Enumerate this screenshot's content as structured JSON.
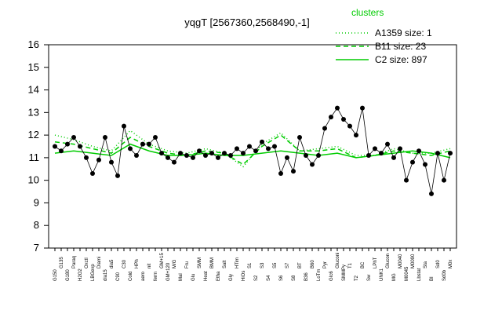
{
  "chart_data": {
    "type": "line",
    "title": "yqgT [2567360,2568490,-1]",
    "ylim": [
      7,
      16
    ],
    "yticks": [
      7,
      8,
      9,
      10,
      11,
      12,
      13,
      14,
      15,
      16
    ],
    "legend": {
      "title": "clusters",
      "placement": "top-right",
      "entries": [
        {
          "label": "A1359 size: 1",
          "style": "dotted"
        },
        {
          "label": "B11 size: 23",
          "style": "dashed"
        },
        {
          "label": "C2 size: 897",
          "style": "solid"
        }
      ]
    },
    "colors": {
      "series": "#00cc00",
      "points": "#000000"
    },
    "categories": [
      "G150",
      "G135",
      "G180",
      "Paraq",
      "H2O2",
      "Oxctl",
      "LBGexp",
      "Diami",
      "dia15",
      "dia5",
      "C90",
      "C30",
      "Cold",
      "HPh",
      "aero",
      "nit",
      "ferm",
      "GM+15",
      "GM+120",
      "M/G",
      "Mal",
      "Fru",
      "Glu",
      "SMM",
      "Heat",
      "BMM",
      "Etha",
      "Salt",
      "Gly",
      "HTim",
      "HiOs",
      "S1",
      "S2",
      "S3",
      "S4",
      "S5",
      "S6",
      "S7",
      "S8",
      "BT",
      "B36",
      "B60",
      "LoTm",
      "Pyr",
      "GIc6",
      "Gluconi",
      "SMMPy",
      "T1",
      "T2",
      "BC",
      "Sw",
      "LPhT",
      "UNK1",
      "Glucon",
      "MG",
      "M0040",
      "M0045",
      "M0090",
      "Lbstat",
      "Sta",
      "BI",
      "Sd0",
      "Sd0b",
      "M0x"
    ],
    "series": [
      {
        "name": "C2 size: 897",
        "style": "solid",
        "x": [
          0,
          3,
          6,
          9,
          12,
          15,
          18,
          21,
          24,
          27,
          30,
          33,
          36,
          39,
          42,
          45,
          48,
          51,
          54,
          57,
          60,
          63
        ],
        "y": [
          11.2,
          11.3,
          11.2,
          11.1,
          11.6,
          11.3,
          11.1,
          11.1,
          11.2,
          11.1,
          11.1,
          11.2,
          11.3,
          11.2,
          11.1,
          11.2,
          11.0,
          11.1,
          11.2,
          11.3,
          11.2,
          11.0
        ]
      },
      {
        "name": "B11 size: 23",
        "style": "dashed",
        "x": [
          0,
          3,
          6,
          9,
          12,
          15,
          18,
          21,
          24,
          27,
          30,
          33,
          36,
          39,
          42,
          45,
          48,
          51,
          54,
          57,
          60,
          63
        ],
        "y": [
          11.7,
          11.6,
          11.4,
          11.2,
          11.9,
          11.5,
          11.2,
          11.1,
          11.3,
          11.2,
          10.7,
          11.5,
          12.0,
          11.3,
          11.3,
          11.4,
          11.0,
          11.1,
          11.3,
          11.2,
          11.1,
          11.3
        ]
      },
      {
        "name": "A1359 size: 1",
        "style": "dotted",
        "x": [
          0,
          3,
          6,
          9,
          12,
          15,
          18,
          21,
          24,
          27,
          30,
          33,
          36,
          39,
          42,
          45,
          48,
          51,
          54,
          57,
          60,
          63
        ],
        "y": [
          12.0,
          11.8,
          11.5,
          11.3,
          12.2,
          11.6,
          11.3,
          11.2,
          11.4,
          11.2,
          10.6,
          11.6,
          12.1,
          11.3,
          11.4,
          11.5,
          11.1,
          11.1,
          11.4,
          11.2,
          11.2,
          11.4
        ]
      }
    ],
    "points": [
      [
        0,
        11.5
      ],
      [
        1,
        11.3
      ],
      [
        2,
        11.6
      ],
      [
        3,
        11.9
      ],
      [
        4,
        11.5
      ],
      [
        5,
        11.0
      ],
      [
        6,
        10.3
      ],
      [
        7,
        10.9
      ],
      [
        8,
        11.9
      ],
      [
        9,
        10.8
      ],
      [
        10,
        10.2
      ],
      [
        11,
        12.4
      ],
      [
        12,
        11.4
      ],
      [
        13,
        11.1
      ],
      [
        14,
        11.6
      ],
      [
        15,
        11.6
      ],
      [
        16,
        11.9
      ],
      [
        17,
        11.2
      ],
      [
        18,
        11.0
      ],
      [
        19,
        10.8
      ],
      [
        20,
        11.2
      ],
      [
        21,
        11.1
      ],
      [
        22,
        11.0
      ],
      [
        23,
        11.3
      ],
      [
        24,
        11.1
      ],
      [
        25,
        11.2
      ],
      [
        26,
        11.0
      ],
      [
        27,
        11.2
      ],
      [
        28,
        11.1
      ],
      [
        29,
        11.4
      ],
      [
        30,
        11.2
      ],
      [
        31,
        11.5
      ],
      [
        32,
        11.3
      ],
      [
        33,
        11.7
      ],
      [
        34,
        11.4
      ],
      [
        35,
        11.5
      ],
      [
        36,
        10.3
      ],
      [
        37,
        11.0
      ],
      [
        38,
        10.4
      ],
      [
        39,
        11.9
      ],
      [
        40,
        11.1
      ],
      [
        41,
        10.7
      ],
      [
        42,
        11.1
      ],
      [
        43,
        12.3
      ],
      [
        44,
        12.8
      ],
      [
        45,
        13.2
      ],
      [
        46,
        12.7
      ],
      [
        47,
        12.4
      ],
      [
        48,
        12.0
      ],
      [
        49,
        13.2
      ],
      [
        50,
        11.1
      ],
      [
        51,
        11.4
      ],
      [
        52,
        11.2
      ],
      [
        53,
        11.6
      ],
      [
        54,
        11.0
      ],
      [
        55,
        11.4
      ],
      [
        56,
        10.0
      ],
      [
        57,
        10.8
      ],
      [
        58,
        11.3
      ],
      [
        59,
        10.7
      ],
      [
        60,
        9.4
      ],
      [
        61,
        11.2
      ],
      [
        62,
        10.0
      ],
      [
        63,
        11.2
      ]
    ]
  }
}
